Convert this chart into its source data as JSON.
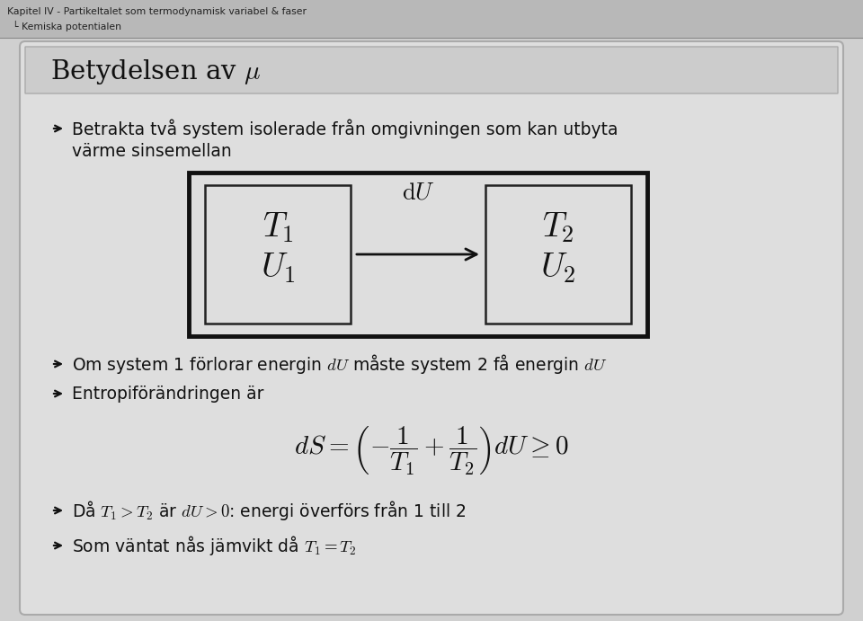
{
  "slide_bg": "#d0d0d0",
  "header_bg": "#c0c0c0",
  "content_bg": "#dedede",
  "title_bar_bg": "#cccccc",
  "header_line1": "Kapitel IV - Partikeltalet som termodynamisk variabel & faser",
  "header_line2": "└ Kemiska potentialen",
  "title": "Betydelsen av $\\mu$",
  "b1_normal": "Betrakta två system isolerade från omgivningen som kan utbyta",
  "b1_line2": "värme sinsemellan",
  "b2": "Om system 1 förlorar energin $dU$ måste system 2 få energin $dU$",
  "b3": "Entropiförändringen är",
  "b4_pre": "Då $T_1 > T_2$ är $dU > 0$: energi överförs från 1 till 2",
  "b5": "Som väntat nås jämvikt då $T_1 = T_2$",
  "outer_box_color": "#111111",
  "inner_box_color": "#222222",
  "text_color": "#111111",
  "diagram_bg": "#dedede"
}
